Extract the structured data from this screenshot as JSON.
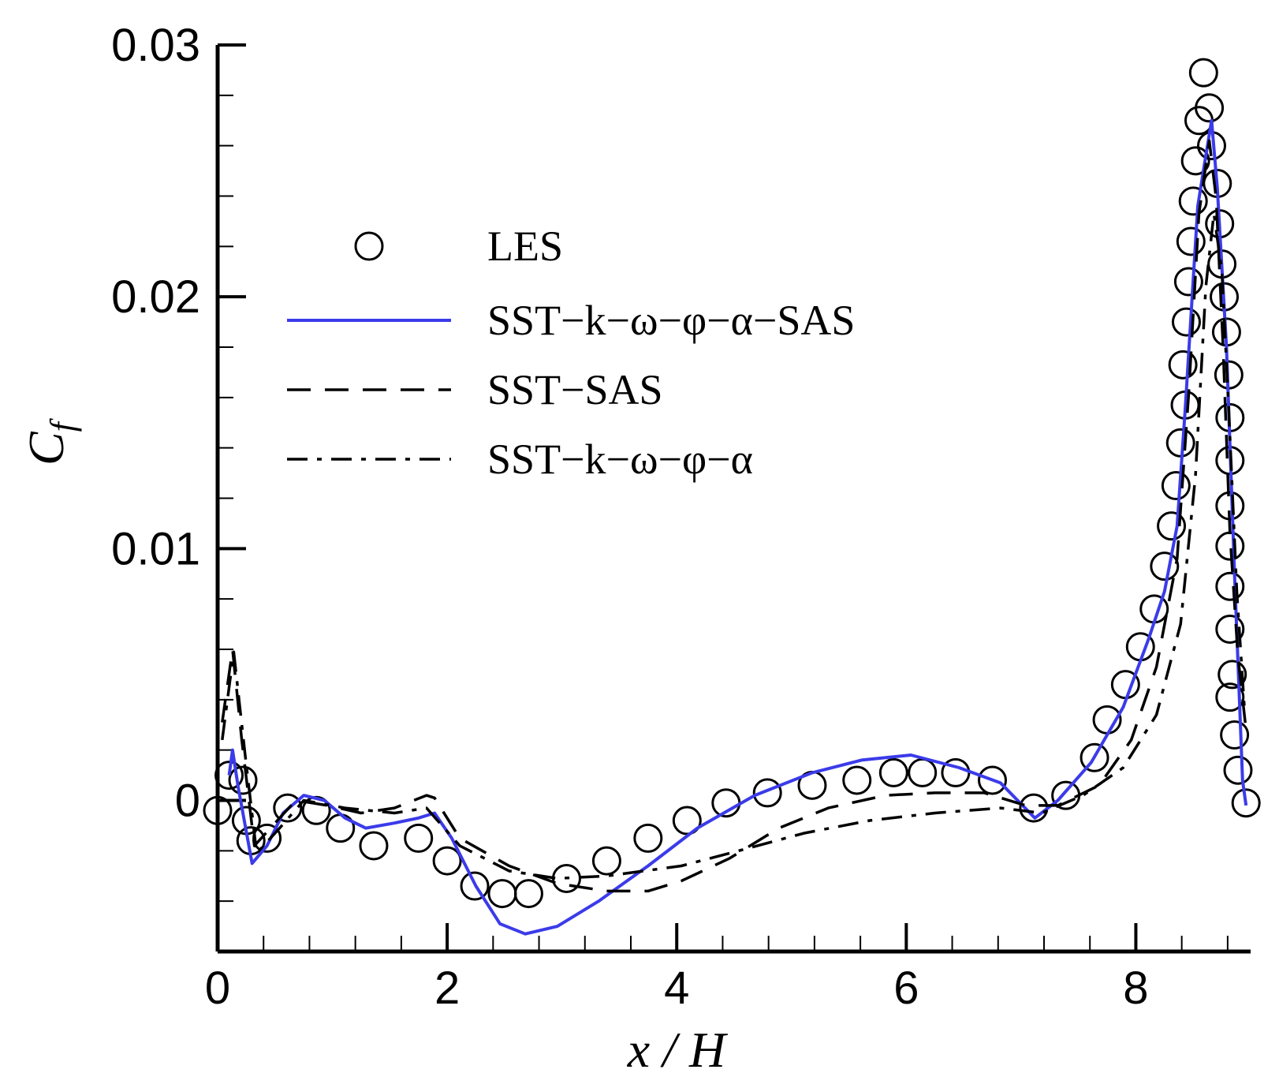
{
  "chart_data": {
    "type": "line",
    "xlabel": "x / H",
    "ylabel": {
      "main": "C",
      "sub": "f"
    },
    "xlim": [
      0,
      9
    ],
    "ylim": [
      -0.006,
      0.03
    ],
    "xticks": [
      0,
      2,
      4,
      6,
      8
    ],
    "yticks": [
      0,
      0.01,
      0.02,
      0.03
    ],
    "xminorticks": [
      0.4,
      0.8,
      1.2,
      1.6,
      2.4,
      2.8,
      3.2,
      3.6,
      4.4,
      4.8,
      5.2,
      5.6,
      6.4,
      6.8,
      7.2,
      7.6,
      8.4,
      8.8
    ],
    "yminorticks": [
      -0.004,
      -0.002,
      0.002,
      0.004,
      0.006,
      0.008,
      0.012,
      0.014,
      0.016,
      0.018,
      0.022,
      0.024,
      0.026,
      0.028
    ],
    "series": [
      {
        "name": "LES",
        "type": "scatter",
        "color": "#000000",
        "x": [
          0,
          0.1,
          0.22,
          0.25,
          0.29,
          0.43,
          0.61,
          0.86,
          1.07,
          1.36,
          1.75,
          2.0,
          2.24,
          2.48,
          2.71,
          3.04,
          3.39,
          3.75,
          4.09,
          4.43,
          4.79,
          5.18,
          5.57,
          5.89,
          6.14,
          6.43,
          6.75,
          7.11,
          7.39,
          7.64,
          7.75,
          7.91,
          8.04,
          8.16,
          8.25,
          8.31,
          8.35,
          8.39,
          8.43,
          8.41,
          8.44,
          8.46,
          8.48,
          8.5,
          8.52,
          8.55,
          8.59,
          8.64,
          8.66,
          8.71,
          8.73,
          8.75,
          8.77,
          8.79,
          8.81,
          8.82,
          8.82,
          8.82,
          8.82,
          8.82,
          8.82,
          8.84,
          8.82,
          8.86,
          8.89,
          8.96
        ],
        "values": [
          -0.0004,
          0.001,
          0.0008,
          -0.0008,
          -0.0016,
          -0.0015,
          -0.0003,
          -0.0004,
          -0.0011,
          -0.0018,
          -0.0015,
          -0.0024,
          -0.0034,
          -0.0037,
          -0.0037,
          -0.0031,
          -0.0024,
          -0.0015,
          -0.0008,
          -0.0001,
          0.0003,
          0.0006,
          0.0008,
          0.0011,
          0.0011,
          0.0011,
          0.0008,
          -0.0003,
          0.0002,
          0.0017,
          0.0032,
          0.0046,
          0.0061,
          0.0076,
          0.0093,
          0.0109,
          0.0125,
          0.0142,
          0.0157,
          0.0173,
          0.019,
          0.0206,
          0.0222,
          0.0238,
          0.0254,
          0.027,
          0.0289,
          0.0275,
          0.026,
          0.0245,
          0.0229,
          0.0213,
          0.02,
          0.0186,
          0.0169,
          0.0152,
          0.0135,
          0.0117,
          0.0101,
          0.0085,
          0.0068,
          0.005,
          0.0041,
          0.0026,
          0.0012,
          -0.0001
        ]
      },
      {
        "name": "SST−k−ω−φ−α−SAS",
        "type": "line",
        "dash": "solid",
        "color": "#3b3bea",
        "x": [
          0.1,
          0.13,
          0.18,
          0.3,
          0.43,
          0.57,
          0.75,
          0.93,
          1.11,
          1.29,
          1.54,
          1.75,
          1.89,
          2.04,
          2.25,
          2.46,
          2.68,
          2.96,
          3.32,
          3.75,
          4.18,
          4.68,
          5.18,
          5.61,
          6.04,
          6.46,
          6.82,
          7.12,
          7.32,
          7.61,
          7.89,
          8.11,
          8.25,
          8.36,
          8.43,
          8.54,
          8.61,
          8.66,
          8.71,
          8.79,
          8.86,
          8.93,
          8.96
        ],
        "values": [
          0.001,
          0.002,
          0.0005,
          -0.0025,
          -0.0018,
          -0.0005,
          0.0002,
          0,
          -0.0007,
          -0.0011,
          -0.0009,
          -0.0007,
          -0.0005,
          -0.0015,
          -0.0034,
          -0.0049,
          -0.0053,
          -0.005,
          -0.004,
          -0.0026,
          -0.0011,
          0.0002,
          0.0011,
          0.0016,
          0.0018,
          0.0013,
          0.0007,
          -0.0007,
          0,
          0.0015,
          0.0037,
          0.0064,
          0.0083,
          0.0109,
          0.0155,
          0.0236,
          0.0256,
          0.027,
          0.0243,
          0.018,
          0.009,
          0.0008,
          -0.0002
        ]
      },
      {
        "name": "SST−SAS",
        "type": "line",
        "dash": "dashed",
        "color": "#000000",
        "x": [
          0.04,
          0.13,
          0.21,
          0.32,
          0.46,
          0.68,
          0.96,
          1.25,
          1.54,
          1.82,
          1.89,
          2.11,
          2.54,
          2.96,
          3.39,
          3.75,
          4.04,
          4.46,
          4.89,
          5.32,
          5.82,
          6.25,
          6.68,
          7.04,
          7.32,
          7.68,
          7.96,
          8.18,
          8.36,
          8.46,
          8.55,
          8.64,
          8.7,
          8.76,
          8.82,
          8.89,
          8.96
        ],
        "values": [
          0.0031,
          0.006,
          0.0024,
          -0.0018,
          -0.0011,
          0,
          -0.0002,
          -0.0005,
          -0.0003,
          0.0002,
          0.0001,
          -0.0015,
          -0.0026,
          -0.0033,
          -0.0036,
          -0.0036,
          -0.0032,
          -0.0023,
          -0.0011,
          -0.0003,
          0.0002,
          0.0003,
          0.0003,
          -0.0002,
          -0.0002,
          0.0006,
          0.0024,
          0.0053,
          0.0096,
          0.0161,
          0.0233,
          0.0262,
          0.0239,
          0.018,
          0.0106,
          0.0057,
          0.0028
        ]
      },
      {
        "name": "SST−k−ω−φ−α",
        "type": "line",
        "dash": "dashdot",
        "color": "#000000",
        "x": [
          0.04,
          0.14,
          0.24,
          0.34,
          0.54,
          0.75,
          1.11,
          1.54,
          1.82,
          2.11,
          2.54,
          2.96,
          3.39,
          4.04,
          4.54,
          5.11,
          5.68,
          6.25,
          6.82,
          7.18,
          7.54,
          7.89,
          8.18,
          8.39,
          8.52,
          8.61,
          8.68,
          8.75,
          8.81,
          8.88,
          8.95
        ],
        "values": [
          0.0024,
          0.0059,
          0.0018,
          -0.0021,
          -0.0011,
          0,
          -0.0003,
          -0.0005,
          -0.0003,
          -0.0018,
          -0.0028,
          -0.0031,
          -0.003,
          -0.0026,
          -0.002,
          -0.0013,
          -0.0008,
          -0.0005,
          -0.0003,
          -0.0005,
          0.0002,
          0.0013,
          0.0034,
          0.007,
          0.0129,
          0.0204,
          0.0233,
          0.021,
          0.0155,
          0.0083,
          0.0034
        ]
      }
    ]
  }
}
